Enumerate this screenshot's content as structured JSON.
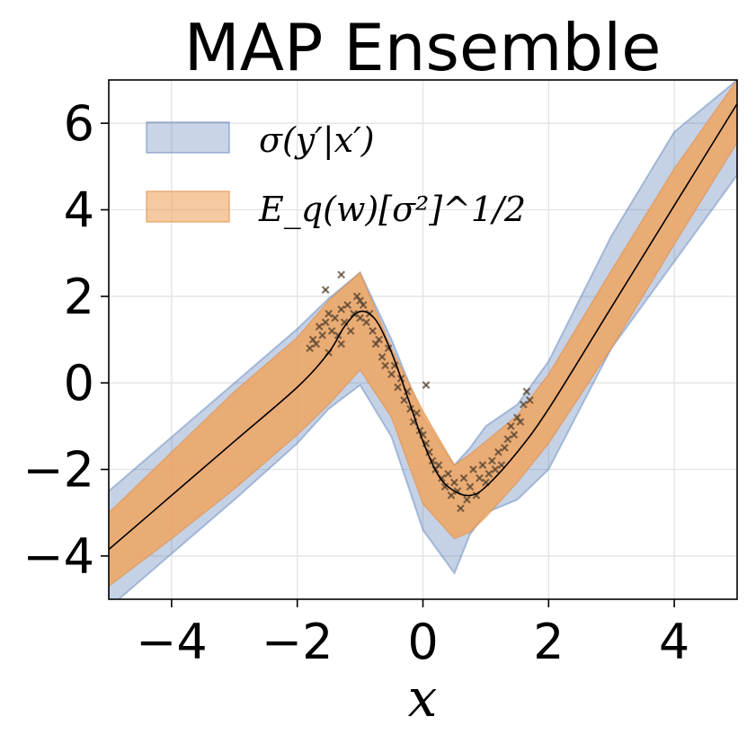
{
  "chart_data": {
    "type": "line",
    "title": "MAP Ensemble",
    "xlabel": "x",
    "ylabel": "",
    "xlim": [
      -5,
      5
    ],
    "ylim": [
      -5,
      7
    ],
    "xticks": [
      -4,
      -2,
      0,
      2,
      4
    ],
    "yticks": [
      -4,
      -2,
      0,
      2,
      4,
      6
    ],
    "xtick_labels": [
      "−4",
      "−2",
      "0",
      "2",
      "4"
    ],
    "ytick_labels": [
      "−4",
      "−2",
      "0",
      "2",
      "4",
      "6"
    ],
    "grid": true,
    "legend_position": "top-left",
    "colors": {
      "total_band": "#4c72b0",
      "aleatoric_band": "#f0a660",
      "mean_line": "#000000",
      "points": "#5a4632"
    },
    "series": [
      {
        "name": "σ(y′|x′)",
        "kind": "band",
        "x": [
          -5.0,
          -4.0,
          -3.0,
          -2.0,
          -1.5,
          -1.0,
          -0.5,
          0.0,
          0.5,
          0.75,
          1.0,
          1.5,
          2.0,
          3.0,
          4.0,
          5.0
        ],
        "lower": [
          -5.2,
          -3.95,
          -2.7,
          -1.4,
          -0.6,
          -0.05,
          -1.25,
          -3.4,
          -4.4,
          -3.5,
          -3.0,
          -2.7,
          -2.0,
          0.8,
          2.8,
          4.8
        ],
        "upper": [
          -2.5,
          -1.25,
          0.0,
          1.25,
          1.95,
          2.55,
          1.0,
          -0.8,
          -1.9,
          -1.5,
          -1.0,
          -0.5,
          0.5,
          3.4,
          5.8,
          7.0
        ]
      },
      {
        "name": "E_q(w)[σ²]^1/2",
        "kind": "band",
        "x": [
          -5.0,
          -4.0,
          -3.0,
          -2.0,
          -1.5,
          -1.0,
          -0.5,
          0.0,
          0.5,
          0.75,
          1.0,
          1.5,
          2.0,
          3.0,
          4.0,
          5.0
        ],
        "lower": [
          -4.7,
          -3.6,
          -2.45,
          -1.2,
          -0.5,
          0.3,
          -0.8,
          -2.8,
          -3.6,
          -3.45,
          -3.1,
          -2.3,
          -1.4,
          0.8,
          3.2,
          5.55
        ],
        "upper": [
          -3.0,
          -1.6,
          -0.2,
          1.05,
          1.9,
          2.55,
          0.8,
          -0.65,
          -1.9,
          -1.65,
          -1.35,
          -0.75,
          0.2,
          2.6,
          4.95,
          7.0
        ]
      },
      {
        "name": "mean",
        "kind": "line",
        "x": [
          -5.0,
          -4.0,
          -3.0,
          -2.0,
          -1.5,
          -1.25,
          -1.0,
          -0.75,
          -0.5,
          -0.25,
          0.0,
          0.25,
          0.5,
          0.75,
          1.0,
          1.5,
          2.0,
          3.0,
          4.0,
          5.0
        ],
        "y": [
          -3.85,
          -2.6,
          -1.35,
          -0.1,
          0.7,
          1.3,
          1.65,
          1.45,
          0.7,
          -0.3,
          -1.35,
          -2.15,
          -2.5,
          -2.6,
          -2.4,
          -1.6,
          -0.6,
          1.75,
          4.1,
          6.45
        ]
      },
      {
        "name": "observations",
        "kind": "scatter",
        "x": [
          -1.8,
          -1.75,
          -1.7,
          -1.65,
          -1.6,
          -1.55,
          -1.5,
          -1.5,
          -1.45,
          -1.4,
          -1.35,
          -1.3,
          -1.3,
          -1.25,
          -1.2,
          -1.15,
          -1.1,
          -1.05,
          -1.0,
          -1.0,
          -0.95,
          -0.9,
          -0.85,
          -0.8,
          -0.75,
          -0.7,
          -0.65,
          -0.6,
          -0.55,
          -0.5,
          -0.45,
          -0.4,
          -0.35,
          -0.3,
          -0.25,
          -0.2,
          -0.15,
          -0.1,
          -0.05,
          0.0,
          0.05,
          0.1,
          0.15,
          0.2,
          0.25,
          0.3,
          0.35,
          0.4,
          0.45,
          0.5,
          0.55,
          0.6,
          0.65,
          0.7,
          0.75,
          0.8,
          0.85,
          0.9,
          0.95,
          1.0,
          1.05,
          1.1,
          1.15,
          1.2,
          1.25,
          1.3,
          1.35,
          1.4,
          1.45,
          1.5,
          1.55,
          1.6,
          1.65,
          1.7,
          -1.55,
          -1.3,
          0.05
        ],
        "y": [
          0.8,
          1.0,
          0.9,
          1.3,
          1.1,
          1.4,
          0.7,
          1.6,
          1.2,
          1.5,
          1.1,
          1.7,
          0.9,
          1.4,
          1.8,
          1.2,
          1.6,
          2.0,
          1.5,
          1.9,
          1.8,
          1.4,
          1.6,
          1.2,
          0.9,
          1.0,
          0.6,
          0.4,
          0.8,
          0.2,
          0.4,
          -0.1,
          0.1,
          -0.4,
          -0.2,
          -0.6,
          -0.9,
          -0.7,
          -1.1,
          -1.2,
          -1.4,
          -1.6,
          -1.8,
          -2.0,
          -1.9,
          -2.2,
          -2.4,
          -2.1,
          -2.6,
          -2.3,
          -2.5,
          -2.9,
          -2.2,
          -2.7,
          -2.4,
          -2.0,
          -2.6,
          -2.2,
          -1.9,
          -2.3,
          -2.1,
          -1.8,
          -2.0,
          -1.6,
          -1.9,
          -1.5,
          -1.3,
          -1.0,
          -1.2,
          -0.8,
          -0.9,
          -0.5,
          -0.2,
          -0.4,
          2.15,
          2.5,
          -0.05
        ]
      }
    ]
  }
}
